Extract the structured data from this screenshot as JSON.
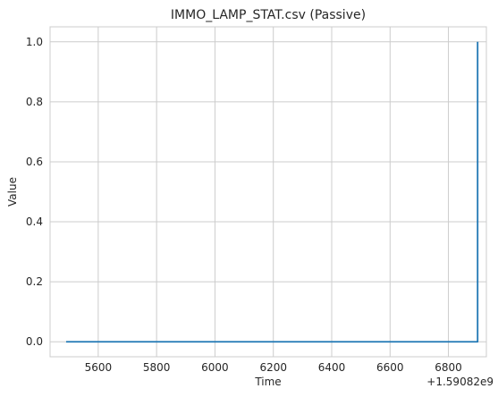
{
  "chart_data": {
    "type": "line",
    "title": "IMMO_LAMP_STAT.csv (Passive)",
    "xlabel": "Time",
    "ylabel": "Value",
    "x_offset_label": "+1.59082e9",
    "xlim": [
      5435,
      6930
    ],
    "ylim": [
      -0.05,
      1.05
    ],
    "x_ticks": [
      5600,
      5800,
      6000,
      6200,
      6400,
      6600,
      6800
    ],
    "x_tick_labels": [
      "5600",
      "5800",
      "6000",
      "6200",
      "6400",
      "6600",
      "6800"
    ],
    "y_ticks": [
      0.0,
      0.2,
      0.4,
      0.6,
      0.8,
      1.0
    ],
    "y_tick_labels": [
      "0.0",
      "0.2",
      "0.4",
      "0.6",
      "0.8",
      "1.0"
    ],
    "grid": true,
    "series": [
      {
        "color": "#1f77b4",
        "x": [
          5490,
          6900,
          6900
        ],
        "y": [
          0,
          0,
          1
        ]
      }
    ]
  }
}
